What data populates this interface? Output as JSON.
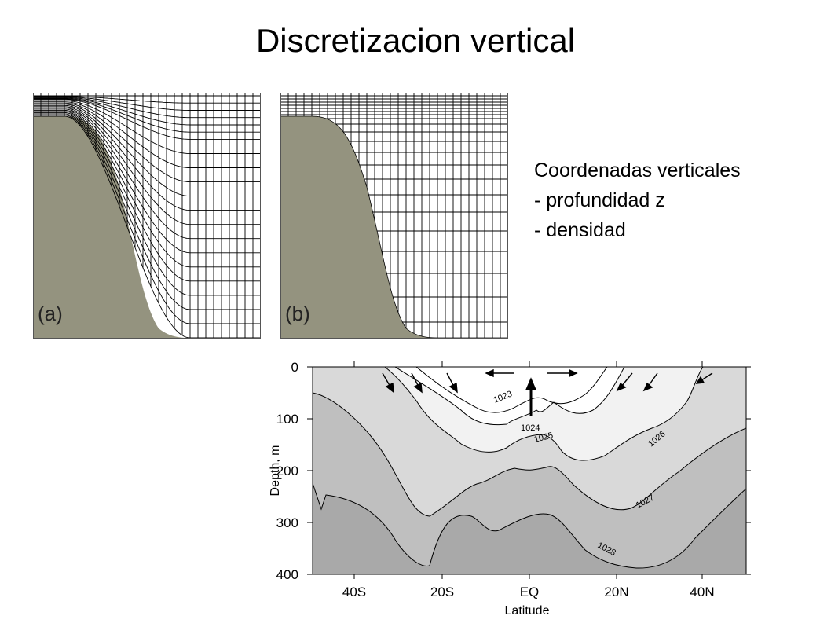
{
  "slide": {
    "title": "Discretizacion vertical",
    "text_lines": [
      "Coordenadas  verticales",
      "- profundidad z",
      "- densidad"
    ]
  },
  "grid_panels": [
    {
      "label": "(a)"
    },
    {
      "label": "(b)"
    }
  ],
  "section": {
    "ylabel": "Depth, m",
    "xlabel": "Latitude",
    "y_ticks": [
      "0",
      "100",
      "200",
      "300",
      "400"
    ],
    "x_ticks": [
      "40S",
      "20S",
      "EQ",
      "20N",
      "40N"
    ],
    "contour_labels": [
      "1023",
      "1024",
      "1025",
      "1026",
      "1027",
      "1028"
    ],
    "colors": {
      "terrain": "#94937f",
      "shade_lightest": "#f2f2f2",
      "shade_light": "#d9d9d9",
      "shade_mid": "#bfbfbf",
      "shade_dark": "#a9a9a9"
    }
  }
}
